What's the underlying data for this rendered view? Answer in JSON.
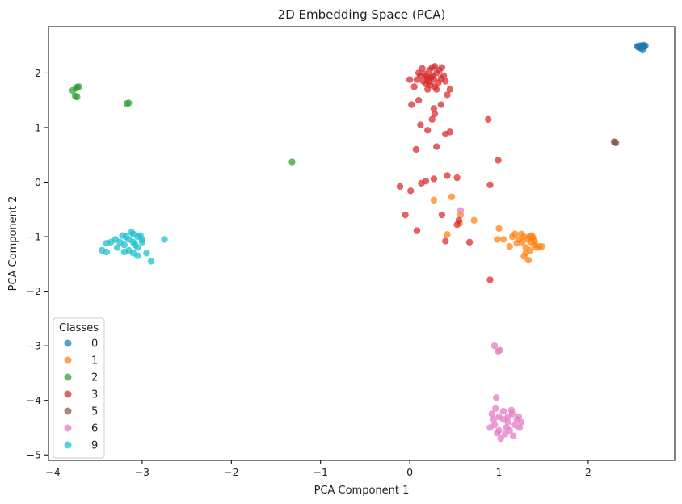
{
  "chart_data": {
    "type": "scatter",
    "title": "2D Embedding Space (PCA)",
    "xlabel": "PCA Component 1",
    "ylabel": "PCA Component 2",
    "xlim": [
      -4.05,
      2.97
    ],
    "ylim": [
      -5.1,
      2.85
    ],
    "xticks": [
      -4,
      -3,
      -2,
      -1,
      0,
      1,
      2
    ],
    "yticks": [
      -5,
      -4,
      -3,
      -2,
      -1,
      0,
      1,
      2
    ],
    "grid": false,
    "legend": {
      "title": "Classes",
      "placement": "lower-left"
    },
    "series": [
      {
        "name": "0",
        "color": "#1f77b4",
        "points": [
          [
            2.56,
            2.48
          ],
          [
            2.58,
            2.5
          ],
          [
            2.6,
            2.49
          ],
          [
            2.62,
            2.51
          ],
          [
            2.64,
            2.5
          ],
          [
            2.59,
            2.46
          ],
          [
            2.57,
            2.47
          ],
          [
            2.61,
            2.42
          ],
          [
            2.63,
            2.48
          ],
          [
            2.55,
            2.49
          ],
          [
            2.6,
            2.5
          ]
        ]
      },
      {
        "name": "1",
        "color": "#ff7f0e",
        "points": [
          [
            1.32,
            -1.05
          ],
          [
            1.28,
            -1.0
          ],
          [
            1.36,
            -1.1
          ],
          [
            1.4,
            -1.15
          ],
          [
            1.25,
            -0.95
          ],
          [
            1.3,
            -1.2
          ],
          [
            1.35,
            -1.25
          ],
          [
            1.22,
            -1.05
          ],
          [
            1.38,
            -1.02
          ],
          [
            1.42,
            -1.2
          ],
          [
            1.3,
            -1.3
          ],
          [
            1.33,
            -1.43
          ],
          [
            1.28,
            -1.36
          ],
          [
            1.45,
            -1.18
          ],
          [
            1.2,
            -1.12
          ],
          [
            1.15,
            -1.0
          ],
          [
            1.12,
            -1.18
          ],
          [
            1.26,
            -1.1
          ],
          [
            1.34,
            -1.0
          ],
          [
            1.4,
            -1.08
          ],
          [
            1.18,
            -0.95
          ],
          [
            1.05,
            -1.05
          ],
          [
            1.0,
            -0.85
          ],
          [
            0.98,
            -1.05
          ],
          [
            0.72,
            -0.7
          ],
          [
            0.57,
            -0.6
          ],
          [
            0.56,
            -0.75
          ],
          [
            0.47,
            -0.27
          ],
          [
            0.27,
            -0.33
          ],
          [
            0.42,
            -0.96
          ],
          [
            1.48,
            -1.18
          ],
          [
            1.37,
            -0.98
          ]
        ]
      },
      {
        "name": "2",
        "color": "#2ca02c",
        "points": [
          [
            -3.73,
            1.74
          ],
          [
            -3.71,
            1.75
          ],
          [
            -3.74,
            1.72
          ],
          [
            -3.78,
            1.68
          ],
          [
            -3.75,
            1.58
          ],
          [
            -3.73,
            1.56
          ],
          [
            -3.15,
            1.45
          ],
          [
            -3.17,
            1.44
          ],
          [
            -1.32,
            0.37
          ]
        ]
      },
      {
        "name": "3",
        "color": "#d62728",
        "points": [
          [
            0.15,
            1.85
          ],
          [
            0.2,
            1.9
          ],
          [
            0.25,
            1.95
          ],
          [
            0.3,
            2.0
          ],
          [
            0.22,
            2.05
          ],
          [
            0.18,
            1.8
          ],
          [
            0.28,
            1.75
          ],
          [
            0.35,
            1.9
          ],
          [
            0.12,
            1.95
          ],
          [
            0.25,
            2.1
          ],
          [
            0.32,
            1.82
          ],
          [
            0.2,
            1.7
          ],
          [
            0.1,
            2.0
          ],
          [
            0.38,
            1.95
          ],
          [
            0.27,
            1.88
          ],
          [
            0.23,
            1.78
          ],
          [
            0.17,
            1.98
          ],
          [
            0.33,
            2.05
          ],
          [
            0.4,
            1.85
          ],
          [
            0.08,
            1.88
          ],
          [
            0.3,
            1.7
          ],
          [
            0.24,
            1.92
          ],
          [
            0.21,
            1.84
          ],
          [
            0.36,
            2.1
          ],
          [
            0.14,
            2.08
          ],
          [
            0.42,
            1.6
          ],
          [
            0.45,
            1.7
          ],
          [
            0.05,
            1.75
          ],
          [
            0.0,
            1.88
          ],
          [
            0.02,
            1.42
          ],
          [
            0.1,
            1.5
          ],
          [
            0.35,
            1.42
          ],
          [
            0.28,
            1.25
          ],
          [
            0.25,
            1.15
          ],
          [
            0.12,
            1.05
          ],
          [
            0.2,
            0.95
          ],
          [
            0.4,
            0.88
          ],
          [
            0.45,
            0.92
          ],
          [
            0.3,
            0.65
          ],
          [
            0.07,
            0.6
          ],
          [
            0.27,
            1.35
          ],
          [
            0.88,
            1.15
          ],
          [
            0.99,
            0.4
          ],
          [
            0.27,
            0.06
          ],
          [
            0.18,
            0.02
          ],
          [
            0.42,
            0.12
          ],
          [
            0.53,
            0.08
          ],
          [
            0.13,
            -0.02
          ],
          [
            -0.11,
            -0.08
          ],
          [
            0.01,
            -0.16
          ],
          [
            -0.05,
            -0.6
          ],
          [
            0.08,
            -0.89
          ],
          [
            0.36,
            -0.6
          ],
          [
            0.55,
            -0.7
          ],
          [
            0.53,
            -0.78
          ],
          [
            0.4,
            -1.08
          ],
          [
            0.67,
            -1.1
          ],
          [
            0.9,
            -0.05
          ],
          [
            0.9,
            -1.79
          ],
          [
            0.28,
            2.12
          ],
          [
            0.19,
            1.94
          ]
        ]
      },
      {
        "name": "5",
        "color": "#8c564b",
        "points": [
          [
            2.3,
            0.73
          ],
          [
            2.31,
            0.72
          ],
          [
            2.29,
            0.74
          ]
        ]
      },
      {
        "name": "6",
        "color": "#e377c2",
        "points": [
          [
            1.0,
            -4.3
          ],
          [
            1.05,
            -4.35
          ],
          [
            1.1,
            -4.4
          ],
          [
            0.95,
            -4.45
          ],
          [
            1.15,
            -4.25
          ],
          [
            1.2,
            -4.35
          ],
          [
            1.08,
            -4.5
          ],
          [
            0.98,
            -4.6
          ],
          [
            1.02,
            -4.7
          ],
          [
            1.12,
            -4.55
          ],
          [
            1.18,
            -4.45
          ],
          [
            0.92,
            -4.25
          ],
          [
            0.9,
            -4.5
          ],
          [
            1.22,
            -4.3
          ],
          [
            1.25,
            -4.4
          ],
          [
            1.05,
            -4.2
          ],
          [
            0.96,
            -4.15
          ],
          [
            1.14,
            -4.18
          ],
          [
            1.0,
            -4.55
          ],
          [
            1.07,
            -4.62
          ],
          [
            0.94,
            -4.35
          ],
          [
            1.1,
            -4.3
          ],
          [
            0.97,
            -3.95
          ],
          [
            0.95,
            -3.0
          ],
          [
            0.99,
            -3.1
          ],
          [
            1.01,
            -3.08
          ],
          [
            0.57,
            -0.52
          ],
          [
            1.16,
            -4.65
          ],
          [
            1.23,
            -4.5
          ]
        ]
      },
      {
        "name": "9",
        "color": "#17becf",
        "points": [
          [
            -3.15,
            -1.05
          ],
          [
            -3.1,
            -1.1
          ],
          [
            -3.05,
            -1.0
          ],
          [
            -3.2,
            -1.15
          ],
          [
            -3.25,
            -1.1
          ],
          [
            -3.1,
            -0.95
          ],
          [
            -3.0,
            -1.05
          ],
          [
            -3.3,
            -1.05
          ],
          [
            -3.05,
            -1.2
          ],
          [
            -3.15,
            -1.25
          ],
          [
            -3.35,
            -1.1
          ],
          [
            -3.4,
            -1.12
          ],
          [
            -3.45,
            -1.25
          ],
          [
            -3.4,
            -1.28
          ],
          [
            -3.2,
            -1.28
          ],
          [
            -3.1,
            -1.3
          ],
          [
            -3.05,
            -1.35
          ],
          [
            -2.95,
            -1.3
          ],
          [
            -2.9,
            -1.45
          ],
          [
            -3.0,
            -1.1
          ],
          [
            -3.12,
            -0.92
          ],
          [
            -3.18,
            -1.0
          ],
          [
            -2.75,
            -1.05
          ],
          [
            -3.28,
            -1.2
          ],
          [
            -3.22,
            -0.98
          ],
          [
            -3.08,
            -1.15
          ],
          [
            -3.02,
            -0.98
          ]
        ]
      }
    ]
  }
}
